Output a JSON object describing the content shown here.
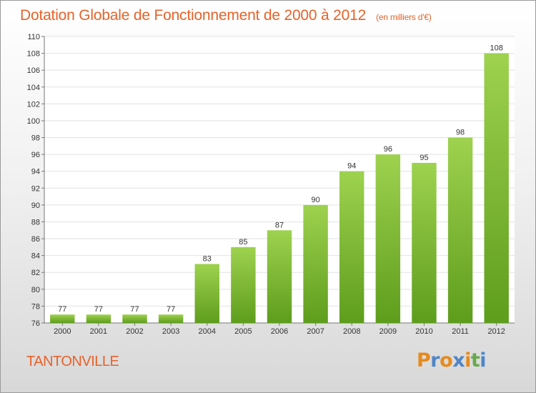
{
  "header": {
    "title": "Dotation Globale de Fonctionnement de 2000 à 2012",
    "unit": "(en milliers d'€)"
  },
  "footer": {
    "place": "TANTONVILLE",
    "logo": "Proxiti"
  },
  "colors": {
    "title": "#e8622a",
    "bar_top": "#9ed24f",
    "bar_bottom": "#5e9d1c",
    "logo_letters": [
      "#e58b1e",
      "#4f86c6",
      "#e58b1e",
      "#4f86c6",
      "#e58b1e",
      "#6aa84f",
      "#4f86c6"
    ]
  },
  "chart_data": {
    "type": "bar",
    "title": "Dotation Globale de Fonctionnement de 2000 à 2012",
    "subtitle": "(en milliers d'€)",
    "categories": [
      "2000",
      "2001",
      "2002",
      "2003",
      "2004",
      "2005",
      "2006",
      "2007",
      "2008",
      "2009",
      "2010",
      "2011",
      "2012"
    ],
    "values": [
      77,
      77,
      77,
      77,
      83,
      85,
      87,
      90,
      94,
      96,
      95,
      98,
      108
    ],
    "ylim": [
      76,
      110
    ],
    "yticks": [
      76,
      78,
      80,
      82,
      84,
      86,
      88,
      90,
      92,
      94,
      96,
      98,
      100,
      102,
      104,
      106,
      108,
      110
    ],
    "grid": true,
    "legend": "none"
  }
}
